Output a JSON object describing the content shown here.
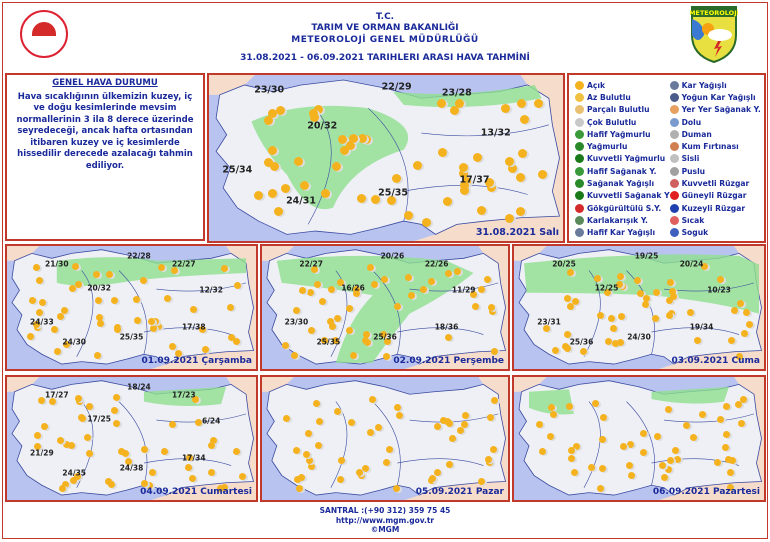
{
  "header": {
    "line1": "T.C.",
    "line2": "TARIM VE ORMAN BAKANLIĞI",
    "line3": "METEOROLOJİ  GENEL  MÜDÜRLÜĞÜ",
    "line4": "31.08.2021  -  06.09.2021   TARIHLERI  ARASI  HAVA  TAHMİNİ",
    "logo_text": "METEOROLOJİ"
  },
  "general": {
    "title": "GENEL HAVA DURUMU",
    "text": "Hava sıcaklığının ülkemizin kuzey, iç ve doğu kesimlerinde mevsim normallerinin 3 ila 8 derece üzerinde seyredeceği, ancak hafta ortasından itibaren kuzey ve iç kesimlerde hissedilir derecede azalacağı tahmin ediliyor."
  },
  "legend": [
    {
      "label": "Açık",
      "icon": "sun",
      "color": "#f5b21f"
    },
    {
      "label": "Az Bulutlu",
      "icon": "sun-small-cloud",
      "color": "#f0c040"
    },
    {
      "label": "Parçalı Bulutlu",
      "icon": "partly-cloudy",
      "color": "#e8c070"
    },
    {
      "label": "Çok Bulutlu",
      "icon": "cloudy",
      "color": "#c8c8c8"
    },
    {
      "label": "Hafif Yağmurlu",
      "icon": "light-rain",
      "color": "#3a9a3a"
    },
    {
      "label": "Yağmurlu",
      "icon": "rain",
      "color": "#2a8a2a"
    },
    {
      "label": "Kuvvetli Yağmurlu",
      "icon": "heavy-rain",
      "color": "#1a7a1a"
    },
    {
      "label": "Hafif Sağanak Y.",
      "icon": "light-shower",
      "color": "#3a9a3a"
    },
    {
      "label": "Sağanak Yağışlı",
      "icon": "shower",
      "color": "#2a8a2a"
    },
    {
      "label": "Kuvvetli Sağanak Y",
      "icon": "heavy-shower",
      "color": "#1a7a1a"
    },
    {
      "label": "Gökgürültülü S.Y.",
      "icon": "thunderstorm",
      "color": "#d42a2a"
    },
    {
      "label": "Karlakarışık Y.",
      "icon": "sleet",
      "color": "#5a8a5a"
    },
    {
      "label": "Hafif Kar Yağışlı",
      "icon": "light-snow",
      "color": "#6a7a9a"
    },
    {
      "label": "Kar Yağışlı",
      "icon": "snow",
      "color": "#6a7a9a"
    },
    {
      "label": "Yoğun Kar Yağışlı",
      "icon": "heavy-snow",
      "color": "#4a5a8a"
    },
    {
      "label": "Yer Yer Sağanak Y.",
      "icon": "scattered-shower",
      "color": "#e8a060"
    },
    {
      "label": "Dolu",
      "icon": "hail",
      "color": "#7a9ad0"
    },
    {
      "label": "Duman",
      "icon": "smoke",
      "color": "#b0b0b0"
    },
    {
      "label": "Kum Fırtınası",
      "icon": "sandstorm",
      "color": "#d08050"
    },
    {
      "label": "Sisli",
      "icon": "fog",
      "color": "#c0c0c0"
    },
    {
      "label": "Puslu",
      "icon": "haze",
      "color": "#a0a0a0"
    },
    {
      "label": "Kuvvetli Rüzgar",
      "icon": "strong-wind",
      "color": "#d06060"
    },
    {
      "label": "Güneyli Rüzgar",
      "icon": "south-wind",
      "color": "#e02020"
    },
    {
      "label": "Kuzeyli Rüzgar",
      "icon": "north-wind",
      "color": "#2040b0"
    },
    {
      "label": "Sıcak",
      "icon": "hot",
      "color": "#e06060"
    },
    {
      "label": "Soguk",
      "icon": "cold",
      "color": "#4060c0"
    }
  ],
  "maps": [
    {
      "date": "31.08.2021 Salı",
      "temps": [
        "23/30",
        "22/29",
        "23/28",
        "20/32",
        "13/32",
        "25/34",
        "17/37",
        "25/35",
        "24/31"
      ]
    },
    {
      "date": "01.09.2021 Çarşamba",
      "temps": [
        "21/30",
        "22/28",
        "22/27",
        "20/32",
        "12/32",
        "24/33",
        "24/30",
        "25/35",
        "17/38"
      ]
    },
    {
      "date": "02.09.2021 Perşembe",
      "temps": [
        "22/27",
        "20/26",
        "22/26",
        "16/26",
        "11/29",
        "23/30",
        "25/35",
        "25/36",
        "18/36"
      ]
    },
    {
      "date": "03.09.2021 Cuma",
      "temps": [
        "20/25",
        "19/25",
        "20/24",
        "12/25",
        "10/23",
        "23/31",
        "25/36",
        "24/30",
        "19/34"
      ]
    },
    {
      "date": "04.09.2021 Cumartesi",
      "temps": [
        "17/27",
        "18/24",
        "17/23",
        "17/25",
        "6/24",
        "21/29",
        "24/35",
        "24/38",
        "17/34"
      ]
    },
    {
      "date": "05.09.2021 Pazar",
      "temps": []
    },
    {
      "date": "06.09.2021 Pazartesi",
      "temps": []
    }
  ],
  "colors": {
    "accent": "#1a2a9a",
    "border": "#c0392b",
    "sea": "#b9c3ef",
    "land": "#eef0f5",
    "rain_zone": "#8fe08f"
  },
  "footer": {
    "phone": "SANTRAL :(+90 312) 359 75 45",
    "url": "http://www.mgm.gov.tr",
    "copyright": "©MGM"
  }
}
